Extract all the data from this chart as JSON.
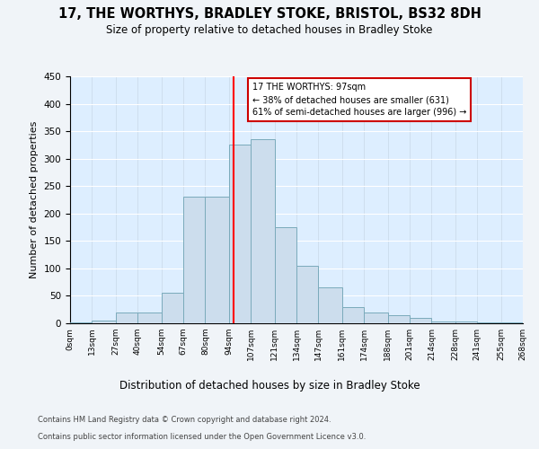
{
  "title": "17, THE WORTHYS, BRADLEY STOKE, BRISTOL, BS32 8DH",
  "subtitle": "Size of property relative to detached houses in Bradley Stoke",
  "xlabel": "Distribution of detached houses by size in Bradley Stoke",
  "ylabel": "Number of detached properties",
  "bar_color": "#ccdded",
  "bar_edge_color": "#7aaabb",
  "background_color": "#ddeeff",
  "fig_color": "#f0f4f8",
  "grid_color": "#ffffff",
  "property_line_x": 97,
  "annotation_text": "17 THE WORTHYS: 97sqm\n← 38% of detached houses are smaller (631)\n61% of semi-detached houses are larger (996) →",
  "annotation_box_color": "#ffffff",
  "annotation_box_edge_color": "#cc0000",
  "footer_line1": "Contains HM Land Registry data © Crown copyright and database right 2024.",
  "footer_line2": "Contains public sector information licensed under the Open Government Licence v3.0.",
  "bins": [
    0,
    13,
    27,
    40,
    54,
    67,
    80,
    94,
    107,
    121,
    134,
    147,
    161,
    174,
    188,
    201,
    214,
    228,
    241,
    255,
    268
  ],
  "counts": [
    1,
    5,
    20,
    20,
    55,
    230,
    230,
    325,
    335,
    175,
    105,
    65,
    30,
    20,
    15,
    10,
    3,
    3,
    1,
    1
  ],
  "ylim": [
    0,
    450
  ],
  "yticks": [
    0,
    50,
    100,
    150,
    200,
    250,
    300,
    350,
    400,
    450
  ]
}
